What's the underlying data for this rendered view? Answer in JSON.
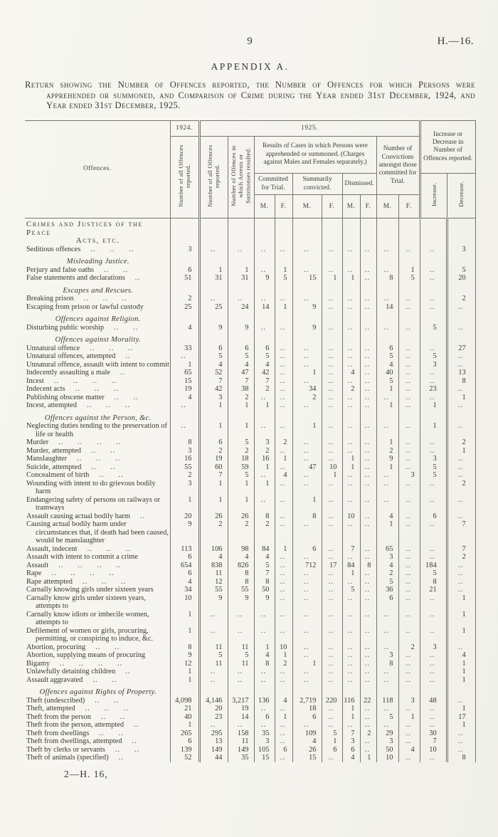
{
  "page": {
    "number": "9",
    "doc_ref": "H.—16.",
    "appendix_title": "APPENDIX A.",
    "return_text": "Return showing the Number of Offences reported, the Number of Offences for which Persons were apprehended or summoned, and Comparison of Crime during the Year ended 31st December, 1924, and Year ended 31st December, 1925.",
    "footer": "2—H. 16,"
  },
  "table": {
    "col_headers": {
      "offences": "Offences.",
      "year_1924": "1924.",
      "year_1925": "1925.",
      "num_all_1924": "Number of all Offences reported.",
      "num_all_1925": "Number of all Offences reported.",
      "num_arrests": "Number of Offences in which Arrests or Summonses resulted.",
      "results_group": "Results of Cases in which Persons were apprehended or summoned. (Charges against Males and Females separately.)",
      "committed": "Committed for Trial.",
      "summarily": "Summarily convicted.",
      "dismissed": "Dismissed.",
      "convictions": "Number of Convictions amongst those committed for Trial.",
      "inc_dec_group": "Increase or Decrease in Number of Offences reported.",
      "increase": "Increase.",
      "decrease": "Decrease.",
      "m": "M.",
      "f": "F."
    },
    "rows": [
      {
        "type": "caps",
        "line1": "Crimes and Justices of the Peace",
        "line2": "Acts, etc."
      },
      {
        "label": "Seditious offences",
        "dots": 3,
        "values": [
          "3",
          "..",
          "..",
          "..",
          "..",
          "..",
          "..",
          "..",
          "..",
          "..",
          "..",
          "..",
          "3"
        ]
      },
      {
        "type": "sub",
        "label": "Misleading Justice."
      },
      {
        "label": "Perjury and false oaths",
        "dots": 2,
        "values": [
          "6",
          "1",
          "1",
          "..",
          "1",
          "..",
          "..",
          "..",
          "..",
          "..",
          "1",
          "..",
          "5"
        ]
      },
      {
        "label": "False statements and declarations",
        "dots": 1,
        "values": [
          "51",
          "31",
          "31",
          "9",
          "5",
          "15",
          "1",
          "1",
          "..",
          "8",
          "5",
          "..",
          "20"
        ]
      },
      {
        "type": "sub",
        "label": "Escapes and Rescues."
      },
      {
        "label": "Breaking prison",
        "dots": 3,
        "values": [
          "2",
          "..",
          "..",
          "..",
          "..",
          "..",
          "..",
          "..",
          "..",
          "..",
          "..",
          "..",
          "2"
        ]
      },
      {
        "label": "Escaping from prison or lawful custody",
        "dots": 0,
        "values": [
          "25",
          "25",
          "24",
          "14",
          "1",
          "9",
          "..",
          "..",
          "..",
          "14",
          "..",
          "..",
          ".."
        ]
      },
      {
        "type": "sub",
        "label": "Offences against Religion."
      },
      {
        "label": "Disturbing public worship",
        "dots": 2,
        "values": [
          "4",
          "9",
          "9",
          "..",
          "..",
          "9",
          "..",
          "..",
          "..",
          "..",
          "..",
          "5",
          ".."
        ]
      },
      {
        "type": "sub",
        "label": "Offences against Morality."
      },
      {
        "label": "Unnatural offence",
        "dots": 3,
        "values": [
          "33",
          "6",
          "6",
          "6",
          "..",
          "..",
          "..",
          "..",
          "..",
          "6",
          "..",
          "..",
          "27"
        ]
      },
      {
        "label": "Unnatural offences, attempted",
        "dots": 1,
        "values": [
          "..",
          "5",
          "5",
          "5",
          "..",
          "..",
          "..",
          "..",
          "..",
          "5",
          "..",
          "5",
          ".."
        ]
      },
      {
        "label": "Unnatural offence, assault with intent to commit",
        "dots": 0,
        "values": [
          "1",
          "4",
          "4",
          "4",
          "..",
          "..",
          "..",
          "..",
          "..",
          "4",
          "..",
          "3",
          ".."
        ]
      },
      {
        "label": "Indecently assaulting a male",
        "dots": 1,
        "values": [
          "65",
          "52",
          "47",
          "42",
          "..",
          "1",
          "..",
          "4",
          "..",
          "40",
          "..",
          "..",
          "13"
        ]
      },
      {
        "label": "Incest",
        "dots": 4,
        "values": [
          "15",
          "7",
          "7",
          "7",
          "..",
          "..",
          "..",
          "..",
          "..",
          "5",
          "..",
          "..",
          "8"
        ]
      },
      {
        "label": "Indecent acts",
        "dots": 3,
        "values": [
          "19",
          "42",
          "38",
          "2",
          "..",
          "34",
          "..",
          "2",
          "..",
          "1",
          "..",
          "23",
          ".."
        ]
      },
      {
        "label": "Publishing obscene matter",
        "dots": 2,
        "values": [
          "4",
          "3",
          "2",
          "..",
          "..",
          "2",
          "..",
          "..",
          "..",
          "..",
          "..",
          "..",
          "1"
        ]
      },
      {
        "label": "Incest, attempted",
        "dots": 3,
        "values": [
          "..",
          "1",
          "1",
          "1",
          "..",
          "..",
          "..",
          "..",
          "..",
          "1",
          "..",
          "1",
          ".."
        ]
      },
      {
        "type": "sub",
        "label": "Offences against the Person, &c."
      },
      {
        "label": "Neglecting duties tending to the preservation of life or health",
        "dots": 0,
        "values": [
          "..",
          "1",
          "1",
          "..",
          "..",
          "1",
          "..",
          "..",
          "..",
          "..",
          "..",
          "1",
          ".."
        ]
      },
      {
        "label": "Murder",
        "dots": 4,
        "values": [
          "8",
          "6",
          "5",
          "3",
          "2",
          "..",
          "..",
          "..",
          "..",
          "1",
          "..",
          "..",
          "2"
        ]
      },
      {
        "label": "Murder, attempted",
        "dots": 2,
        "values": [
          "3",
          "2",
          "2",
          "2",
          "..",
          "..",
          "..",
          "..",
          "..",
          "2",
          "..",
          "..",
          "1"
        ]
      },
      {
        "label": "Manslaughter",
        "dots": 3,
        "values": [
          "16",
          "19",
          "18",
          "16",
          "1",
          "..",
          "..",
          "1",
          "..",
          "9",
          "..",
          "3",
          ".."
        ]
      },
      {
        "label": "Suicide, attempted",
        "dots": 2,
        "values": [
          "55",
          "60",
          "59",
          "1",
          "..",
          "47",
          "10",
          "1",
          "..",
          "1",
          "..",
          "5",
          ".."
        ]
      },
      {
        "label": "Concealment of birth",
        "dots": 2,
        "values": [
          "2",
          "7",
          "5",
          "..",
          "4",
          "..",
          "1",
          "..",
          "..",
          "..",
          "3",
          "5",
          ".."
        ]
      },
      {
        "label": "Wounding with intent to do grievous bodily harm",
        "dots": 0,
        "values": [
          "3",
          "1",
          "1",
          "1",
          "..",
          "..",
          "..",
          "..",
          "..",
          "..",
          "..",
          "..",
          "2"
        ]
      },
      {
        "label": "Endangering safety of persons on railways or tramways",
        "dots": 0,
        "values": [
          "1",
          "1",
          "1",
          "..",
          "..",
          "1",
          "..",
          "..",
          "..",
          "..",
          "..",
          "..",
          ".."
        ]
      },
      {
        "label": "Assault causing actual bodily harm",
        "dots": 1,
        "values": [
          "20",
          "26",
          "26",
          "8",
          "..",
          "8",
          "..",
          "10",
          "..",
          "4",
          "..",
          "6",
          ".."
        ]
      },
      {
        "label": "Causing actual bodily harm under circumstances that, if death had been caused, would be manslaughter",
        "dots": 0,
        "values": [
          "9",
          "2",
          "2",
          "2",
          "..",
          "..",
          "..",
          "..",
          "..",
          "1",
          "..",
          "..",
          "7"
        ]
      },
      {
        "label": "Assault, indecent",
        "dots": 3,
        "values": [
          "113",
          "106",
          "98",
          "84",
          "1",
          "6",
          "..",
          "7",
          "..",
          "65",
          "..",
          "..",
          "7"
        ]
      },
      {
        "label": "Assault with intent to commit a crime",
        "dots": 0,
        "values": [
          "6",
          "4",
          "4",
          "4",
          "..",
          "..",
          "..",
          "..",
          "..",
          "3",
          "..",
          "..",
          "2"
        ]
      },
      {
        "label": "Assault",
        "dots": 4,
        "values": [
          "654",
          "838",
          "826",
          "5",
          "..",
          "712",
          "17",
          "84",
          "8",
          "4",
          "..",
          "184",
          ".."
        ]
      },
      {
        "label": "Rape",
        "dots": 4,
        "values": [
          "6",
          "11",
          "8",
          "7",
          "..",
          "..",
          "..",
          "1",
          "..",
          "2",
          "..",
          "5",
          ".."
        ]
      },
      {
        "label": "Rape attempted",
        "dots": 3,
        "values": [
          "4",
          "12",
          "8",
          "8",
          "..",
          "..",
          "..",
          "..",
          "..",
          "5",
          "..",
          "8",
          ".."
        ]
      },
      {
        "label": "Carnally knowing girls under sixteen years",
        "dots": 0,
        "values": [
          "34",
          "55",
          "55",
          "50",
          "..",
          "..",
          "..",
          "5",
          "..",
          "36",
          "..",
          "21",
          ".."
        ]
      },
      {
        "label": "Carnally know girls under sixteen years, attempts to",
        "dots": 0,
        "values": [
          "10",
          "9",
          "9",
          "9",
          "..",
          "..",
          "..",
          "..",
          "..",
          "6",
          "..",
          "..",
          "1"
        ]
      },
      {
        "label": "Carnally know idiots or imbecile women, attempts to",
        "dots": 0,
        "values": [
          "1",
          "..",
          "..",
          "..",
          "..",
          "..",
          "..",
          "..",
          "..",
          "..",
          "..",
          "..",
          "1"
        ]
      },
      {
        "label": "Defilement of women or girls, procuring, permitting, or conspiring to induce, &c.",
        "dots": 0,
        "values": [
          "1",
          "..",
          "..",
          "..",
          "..",
          "..",
          "..",
          "..",
          "..",
          "..",
          "..",
          "..",
          "1"
        ]
      },
      {
        "label": "Abortion, procuring",
        "dots": 2,
        "values": [
          "8",
          "11",
          "11",
          "1",
          "10",
          "..",
          "..",
          "..",
          "..",
          "..",
          "2",
          "3",
          ".."
        ]
      },
      {
        "label": "Abortion, supplying means of procuring",
        "dots": 0,
        "values": [
          "9",
          "5",
          "5",
          "4",
          "1",
          "..",
          "..",
          "..",
          "..",
          "3",
          "..",
          "..",
          "4"
        ]
      },
      {
        "label": "Bigamy",
        "dots": 4,
        "values": [
          "12",
          "11",
          "11",
          "8",
          "2",
          "1",
          "..",
          "..",
          "..",
          "8",
          "..",
          "..",
          "1"
        ]
      },
      {
        "label": "Unlawfully detaining children",
        "dots": 1,
        "values": [
          "1",
          "..",
          "..",
          "..",
          "..",
          "..",
          "..",
          "..",
          "..",
          "..",
          "..",
          "..",
          "1"
        ]
      },
      {
        "label": "Assault aggravated",
        "dots": 2,
        "values": [
          "1",
          "..",
          "..",
          "..",
          "..",
          "..",
          "..",
          "..",
          "..",
          "..",
          "..",
          "..",
          "1"
        ]
      },
      {
        "type": "sub",
        "label": "Offences against Rights of Property."
      },
      {
        "label": "Theft (undescribed)",
        "dots": 2,
        "values": [
          "4,098",
          "4,146",
          "3,217",
          "136",
          "4",
          "2,719",
          "220",
          "116",
          "22",
          "118",
          "3",
          "48",
          ".."
        ]
      },
      {
        "label": "Theft, attempted",
        "dots": 3,
        "values": [
          "21",
          "20",
          "19",
          "..",
          "..",
          "18",
          "..",
          "1",
          "..",
          "..",
          "..",
          "..",
          "1"
        ]
      },
      {
        "label": "Theft from the person",
        "dots": 2,
        "values": [
          "40",
          "23",
          "14",
          "6",
          "1",
          "6",
          "..",
          "1",
          "..",
          "5",
          "1",
          "..",
          "17"
        ]
      },
      {
        "label": "Theft from the person, attempted",
        "dots": 1,
        "values": [
          "1",
          "..",
          "..",
          "..",
          "..",
          "..",
          "..",
          "..",
          "..",
          "..",
          "..",
          "..",
          "1"
        ]
      },
      {
        "label": "Theft from dwellings",
        "dots": 2,
        "values": [
          "265",
          "295",
          "158",
          "35",
          "..",
          "109",
          "5",
          "7",
          "2",
          "29",
          "..",
          "30",
          ".."
        ]
      },
      {
        "label": "Theft from dwellings, attempted",
        "dots": 1,
        "values": [
          "6",
          "13",
          "11",
          "3",
          "..",
          "4",
          "1",
          "3",
          "..",
          "3",
          "..",
          "7",
          ".."
        ]
      },
      {
        "label": "Theft by clerks or servants",
        "dots": 2,
        "values": [
          "139",
          "149",
          "149",
          "105",
          "6",
          "26",
          "6",
          "6",
          "..",
          "50",
          "4",
          "10",
          ".."
        ]
      },
      {
        "label": "Theft of animals (specified)",
        "dots": 1,
        "values": [
          "52",
          "44",
          "35",
          "15",
          "..",
          "15",
          "..",
          "4",
          "1",
          "10",
          "..",
          "..",
          "8"
        ]
      }
    ]
  }
}
